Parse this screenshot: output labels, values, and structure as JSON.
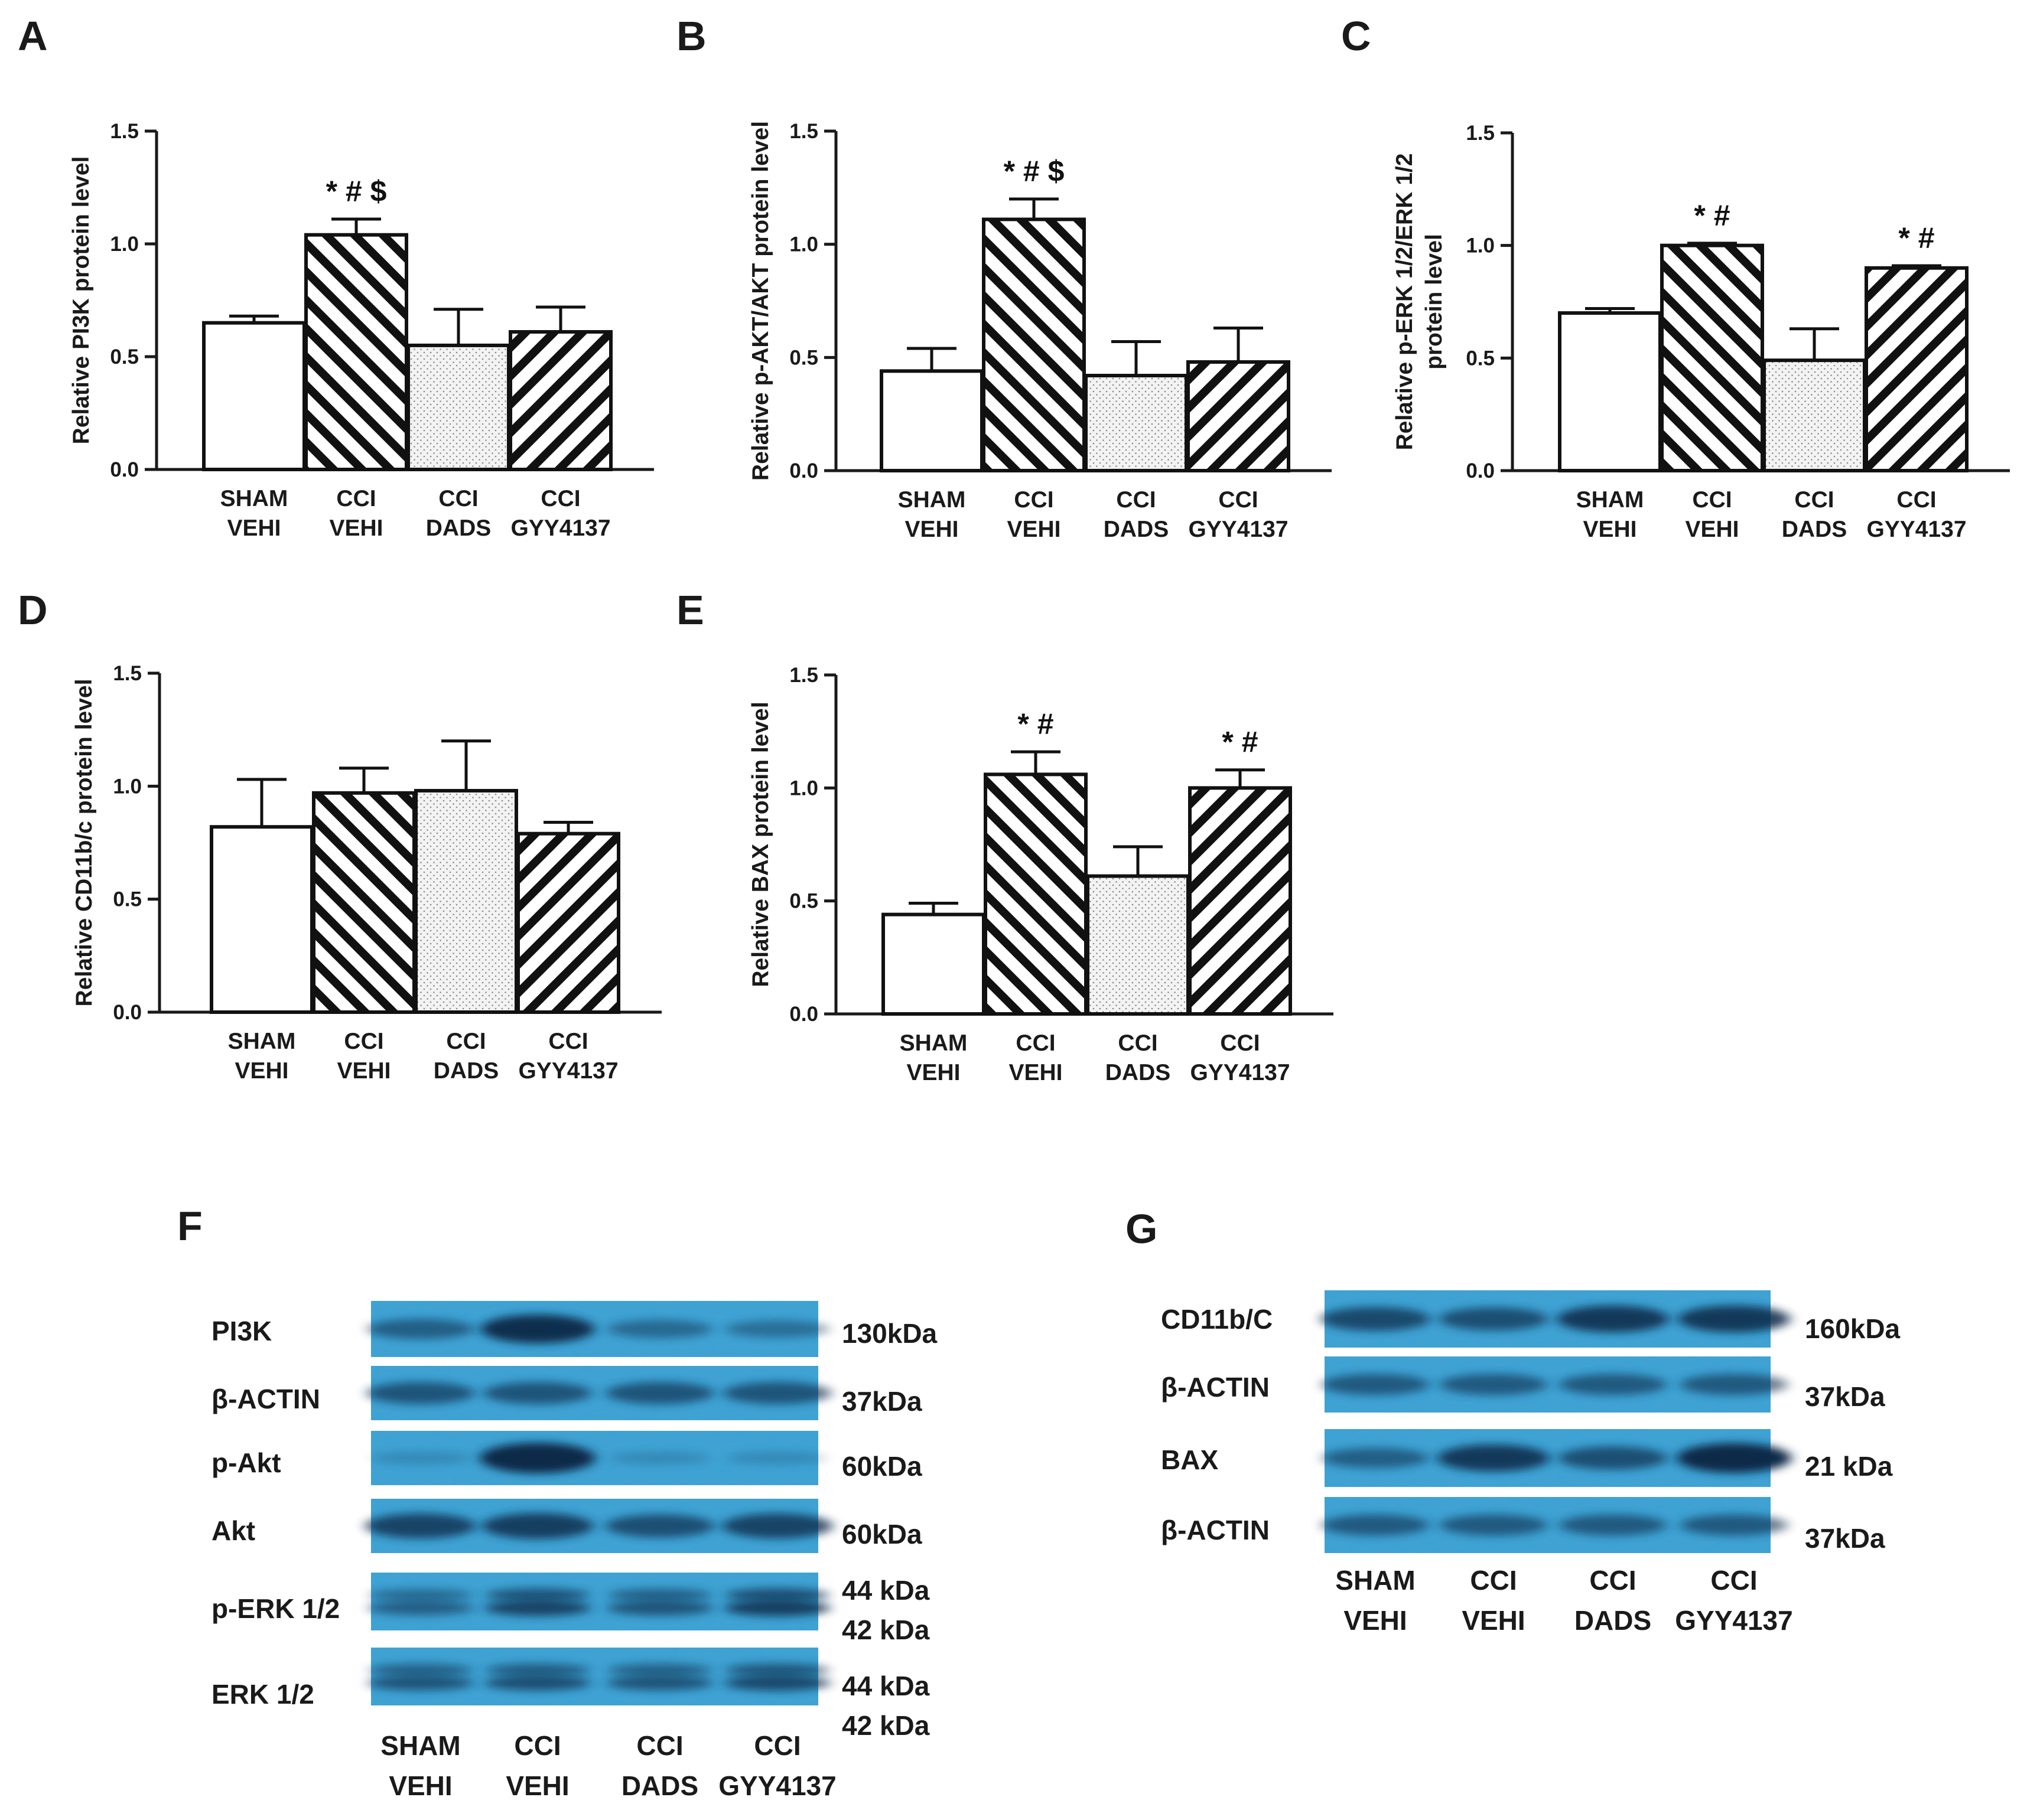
{
  "chart_data": [
    {
      "panel": "A",
      "type": "bar",
      "ylabel": "Relative PI3K protein level",
      "ylim": [
        0,
        1.5
      ],
      "yticks": [
        "0.0",
        "0.5",
        "1.0",
        "1.5"
      ],
      "categories": [
        [
          "SHAM",
          "VEHI"
        ],
        [
          "CCI",
          "VEHI"
        ],
        [
          "CCI",
          "DADS"
        ],
        [
          "CCI",
          "GYY4137"
        ]
      ],
      "values": [
        0.65,
        1.04,
        0.55,
        0.61
      ],
      "errors": [
        0.03,
        0.07,
        0.16,
        0.11
      ],
      "significance": [
        "",
        "* # $",
        "",
        ""
      ]
    },
    {
      "panel": "B",
      "type": "bar",
      "ylabel": "Relative p-AKT/AKT protein level",
      "ylim": [
        0,
        1.5
      ],
      "yticks": [
        "0.0",
        "0.5",
        "1.0",
        "1.5"
      ],
      "categories": [
        [
          "SHAM",
          "VEHI"
        ],
        [
          "CCI",
          "VEHI"
        ],
        [
          "CCI",
          "DADS"
        ],
        [
          "CCI",
          "GYY4137"
        ]
      ],
      "values": [
        0.44,
        1.11,
        0.42,
        0.48
      ],
      "errors": [
        0.1,
        0.09,
        0.15,
        0.15
      ],
      "significance": [
        "",
        "* # $",
        "",
        ""
      ]
    },
    {
      "panel": "C",
      "type": "bar",
      "ylabel": [
        "Relative p-ERK 1/2/ERK 1/2",
        "protein level"
      ],
      "ylim": [
        0,
        1.5
      ],
      "yticks": [
        "0.0",
        "0.5",
        "1.0",
        "1.5"
      ],
      "categories": [
        [
          "SHAM",
          "VEHI"
        ],
        [
          "CCI",
          "VEHI"
        ],
        [
          "CCI",
          "DADS"
        ],
        [
          "CCI",
          "GYY4137"
        ]
      ],
      "values": [
        0.7,
        1.0,
        0.49,
        0.9
      ],
      "errors": [
        0.02,
        0.01,
        0.14,
        0.01
      ],
      "significance": [
        "",
        "* #",
        "",
        "* #"
      ]
    },
    {
      "panel": "D",
      "type": "bar",
      "ylabel": "Relative CD11b/c protein level",
      "ylim": [
        0,
        1.5
      ],
      "yticks": [
        "0.0",
        "0.5",
        "1.0",
        "1.5"
      ],
      "categories": [
        [
          "SHAM",
          "VEHI"
        ],
        [
          "CCI",
          "VEHI"
        ],
        [
          "CCI",
          "DADS"
        ],
        [
          "CCI",
          "GYY4137"
        ]
      ],
      "values": [
        0.82,
        0.97,
        0.98,
        0.79
      ],
      "errors": [
        0.21,
        0.11,
        0.22,
        0.05
      ],
      "significance": [
        "",
        "",
        "",
        ""
      ]
    },
    {
      "panel": "E",
      "type": "bar",
      "ylabel": "Relative BAX protein level",
      "ylim": [
        0,
        1.5
      ],
      "yticks": [
        "0.0",
        "0.5",
        "1.0",
        "1.5"
      ],
      "categories": [
        [
          "SHAM",
          "VEHI"
        ],
        [
          "CCI",
          "VEHI"
        ],
        [
          "CCI",
          "DADS"
        ],
        [
          "CCI",
          "GYY4137"
        ]
      ],
      "values": [
        0.44,
        1.06,
        0.61,
        1.0
      ],
      "errors": [
        0.05,
        0.1,
        0.13,
        0.08
      ],
      "significance": [
        "",
        "* #",
        "",
        "* #"
      ]
    }
  ],
  "blots": [
    {
      "panel": "F",
      "rows": [
        {
          "label": "PI3K",
          "kda": [
            "130kDa"
          ],
          "bands": [
            0.45,
            0.9,
            0.35,
            0.3
          ]
        },
        {
          "label": "β-ACTIN",
          "kda": [
            "37kDa"
          ],
          "bands": [
            0.55,
            0.55,
            0.55,
            0.55
          ]
        },
        {
          "label": "p-Akt",
          "kda": [
            "60kDa"
          ],
          "bands": [
            0.05,
            1.0,
            0.05,
            0.05
          ]
        },
        {
          "label": "Akt",
          "kda": [
            "60kDa"
          ],
          "bands": [
            0.7,
            0.75,
            0.6,
            0.7
          ]
        },
        {
          "label": "p-ERK 1/2",
          "kda": [
            "44 kDa",
            "42 kDa"
          ],
          "bands": [
            0.45,
            0.7,
            0.55,
            0.75
          ]
        },
        {
          "label": "ERK 1/2",
          "kda": [
            "44 kDa",
            "42 kDa"
          ],
          "bands": [
            0.55,
            0.6,
            0.55,
            0.65
          ]
        }
      ],
      "lanes": [
        [
          "SHAM",
          "VEHI"
        ],
        [
          "CCI",
          "VEHI"
        ],
        [
          "CCI",
          "DADS"
        ],
        [
          "CCI",
          "GYY4137"
        ]
      ]
    },
    {
      "panel": "G",
      "rows": [
        {
          "label": "CD11b/C",
          "kda": [
            "160kDa"
          ],
          "bands": [
            0.65,
            0.6,
            0.8,
            0.8
          ]
        },
        {
          "label": "β-ACTIN",
          "kda": [
            "37kDa"
          ],
          "bands": [
            0.5,
            0.5,
            0.5,
            0.5
          ]
        },
        {
          "label": "BAX",
          "kda": [
            "21 kDa"
          ],
          "bands": [
            0.45,
            0.8,
            0.6,
            0.95
          ]
        },
        {
          "label": "β-ACTIN",
          "kda": [
            "37kDa"
          ],
          "bands": [
            0.5,
            0.5,
            0.5,
            0.5
          ]
        }
      ],
      "lanes": [
        [
          "SHAM",
          "VEHI"
        ],
        [
          "CCI",
          "VEHI"
        ],
        [
          "CCI",
          "DADS"
        ],
        [
          "CCI",
          "GYY4137"
        ]
      ]
    }
  ],
  "colors": {
    "axis": "#1a1a1a",
    "bar_edge": "#111111",
    "open_fill": "#ffffff",
    "dotted_fill": "#f3f3f3",
    "membrane": "#3aa1d4",
    "band": "#0c2a4a"
  }
}
